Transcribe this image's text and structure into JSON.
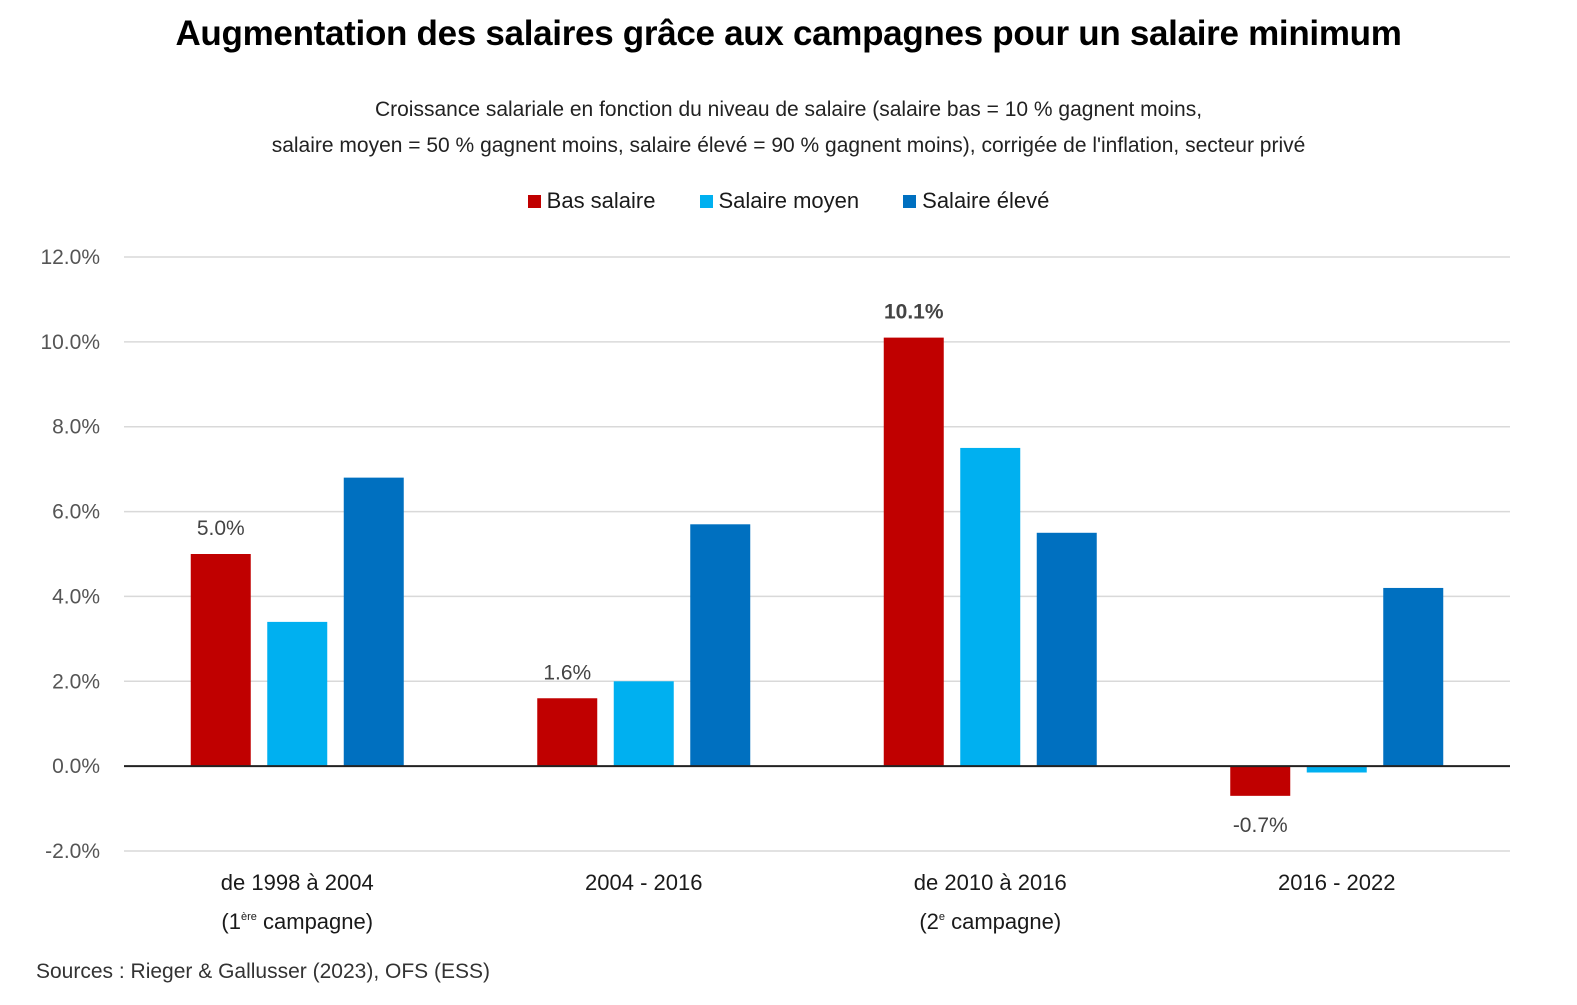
{
  "chart_data": {
    "type": "bar",
    "title": "Augmentation des salaires grâce aux campagnes pour un salaire minimum",
    "subtitle_lines": [
      "Croissance salariale en fonction du niveau de salaire (salaire bas = 10 % gagnent moins,",
      "salaire moyen = 50 % gagnent moins, salaire élevé = 90 % gagnent moins), corrigée de l'inflation, secteur privé"
    ],
    "categories": [
      {
        "line1": "de 1998 à 2004",
        "line2_prefix": "(1",
        "line2_sup": "ère",
        "line2_suffix": " campagne)"
      },
      {
        "line1": "2004 - 2016",
        "line2_prefix": "",
        "line2_sup": "",
        "line2_suffix": ""
      },
      {
        "line1": "de 2010 à 2016",
        "line2_prefix": "(2",
        "line2_sup": "e",
        "line2_suffix": " campagne)"
      },
      {
        "line1": "2016 - 2022",
        "line2_prefix": "",
        "line2_sup": "",
        "line2_suffix": ""
      }
    ],
    "series": [
      {
        "name": "Bas salaire",
        "color": "#c00000",
        "values": [
          5.0,
          1.6,
          10.1,
          -0.7
        ]
      },
      {
        "name": "Salaire moyen",
        "color": "#00b0f0",
        "values": [
          3.4,
          2.0,
          7.5,
          -0.15
        ]
      },
      {
        "name": "Salaire élevé",
        "color": "#0070c0",
        "values": [
          6.8,
          5.7,
          5.5,
          4.2
        ]
      }
    ],
    "data_labels": [
      {
        "series": 0,
        "category": 0,
        "text": "5.0%",
        "bold": false
      },
      {
        "series": 0,
        "category": 1,
        "text": "1.6%",
        "bold": false
      },
      {
        "series": 0,
        "category": 2,
        "text": "10.1%",
        "bold": true
      },
      {
        "series": 0,
        "category": 3,
        "text": "-0.7%",
        "bold": false
      }
    ],
    "xlabel": "",
    "ylabel": "",
    "ylim": [
      -2.0,
      12.0
    ],
    "yticks": [
      12.0,
      10.0,
      8.0,
      6.0,
      4.0,
      2.0,
      0.0,
      -2.0
    ],
    "ytick_labels": [
      "12.0%",
      "10.0%",
      "8.0%",
      "6.0%",
      "4.0%",
      "2.0%",
      "0.0%",
      "-2.0%"
    ],
    "grid": true,
    "legend_position": "top-center"
  },
  "source": "Sources : Rieger & Gallusser (2023), OFS (ESS)"
}
